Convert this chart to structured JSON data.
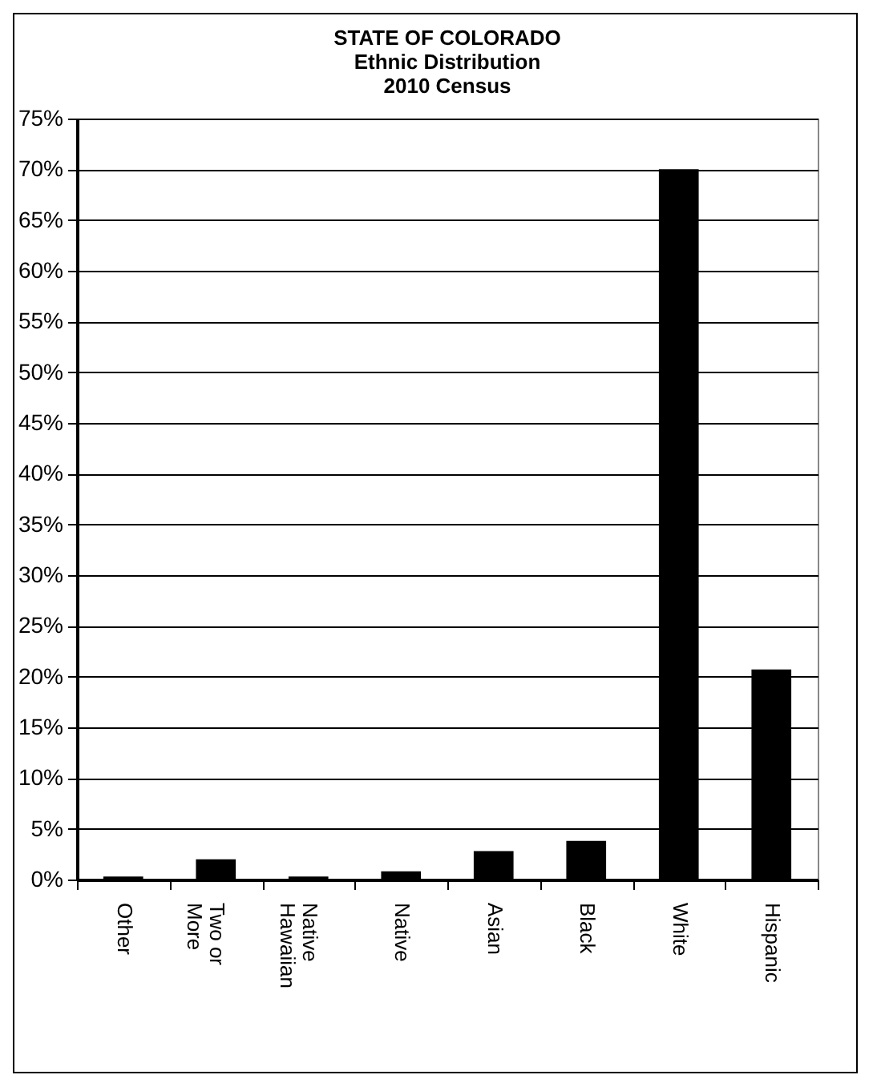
{
  "chart_data": {
    "type": "bar",
    "title": "STATE OF COLORADO\nEthnic Distribution\n2010 Census",
    "categories": [
      "Other",
      "Two or\nMore",
      "Native\nHawaiian",
      "Native",
      "Asian",
      "Black",
      "White",
      "Hispanic"
    ],
    "values": [
      0.3,
      2.0,
      0.3,
      0.8,
      2.8,
      3.8,
      70.0,
      20.7
    ],
    "color": "#000000",
    "ylim": [
      0,
      75
    ],
    "yticks": [
      {
        "value": 0,
        "label": "0%"
      },
      {
        "value": 5,
        "label": "5%"
      },
      {
        "value": 10,
        "label": "10%"
      },
      {
        "value": 15,
        "label": "15%"
      },
      {
        "value": 20,
        "label": "20%"
      },
      {
        "value": 25,
        "label": "25%"
      },
      {
        "value": 30,
        "label": "30%"
      },
      {
        "value": 35,
        "label": "35%"
      },
      {
        "value": 40,
        "label": "40%"
      },
      {
        "value": 45,
        "label": "45%"
      },
      {
        "value": 50,
        "label": "50%"
      },
      {
        "value": 55,
        "label": "55%"
      },
      {
        "value": 60,
        "label": "60%"
      },
      {
        "value": 65,
        "label": "65%"
      },
      {
        "value": 70,
        "label": "70%"
      },
      {
        "value": 75,
        "label": "75%"
      }
    ],
    "grid": "y"
  }
}
